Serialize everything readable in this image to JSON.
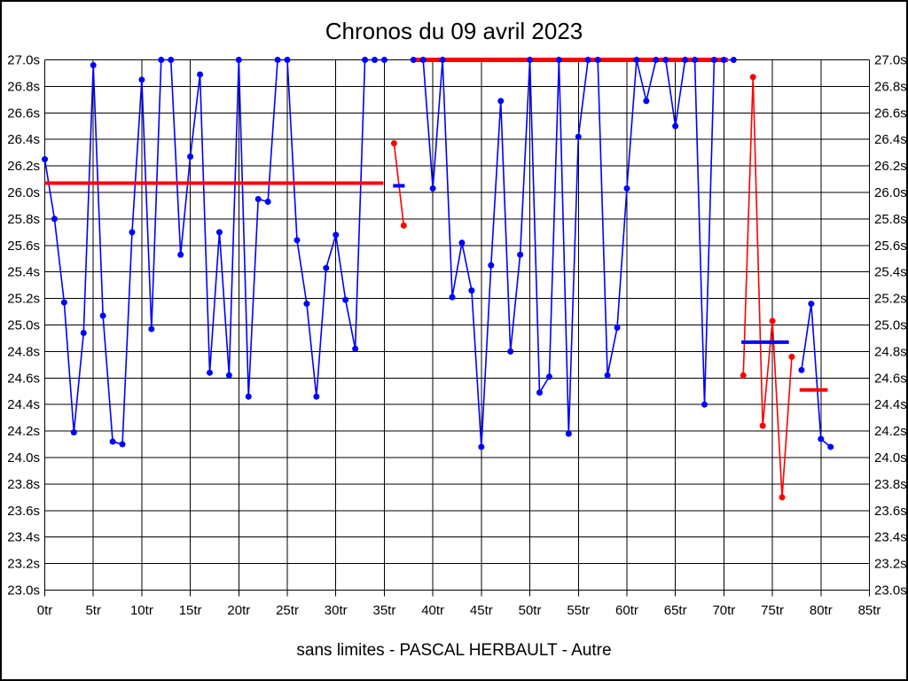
{
  "page": {
    "title": "Chronos du 09 avril 2023",
    "footer": "sans limites - PASCAL HERBAULT - Autre"
  },
  "chart_data": {
    "type": "line",
    "title": "Chronos du 09 avril 2023",
    "subtitle": "sans limites - PASCAL HERBAULT - Autre",
    "grid": true,
    "legend": "none",
    "x_axis": {
      "unit": "tr",
      "min": 0,
      "max": 85,
      "tick_step": 5,
      "tick_labels": [
        "0tr",
        "5tr",
        "10tr",
        "15tr",
        "20tr",
        "25tr",
        "30tr",
        "35tr",
        "40tr",
        "45tr",
        "50tr",
        "55tr",
        "60tr",
        "65tr",
        "70tr",
        "75tr",
        "80tr",
        "85tr"
      ]
    },
    "y_axis": {
      "unit": "s",
      "min": 23.0,
      "max": 27.0,
      "tick_step": 0.2,
      "labels_both_sides": true,
      "tick_labels_top_to_bottom": [
        "27.0s",
        "26.8s",
        "26.6s",
        "26.4s",
        "26.2s",
        "26.0s",
        "25.8s",
        "25.6s",
        "25.4s",
        "25.2s",
        "25.0s",
        "24.8s",
        "24.6s",
        "24.4s",
        "24.2s",
        "24.0s",
        "23.8s",
        "23.6s",
        "23.4s",
        "23.2s",
        "23.0s"
      ]
    },
    "colors": {
      "blue_series": "#0000ff",
      "red_series": "#ff0000",
      "grid": "#000000"
    },
    "series": [
      {
        "name": "chronos-bleu",
        "color": "#0000ff",
        "marker": "dot",
        "segments": [
          [
            [
              0,
              26.25
            ],
            [
              1,
              25.8
            ],
            [
              2,
              25.17
            ],
            [
              3,
              24.19
            ],
            [
              4,
              24.94
            ],
            [
              5,
              26.96
            ],
            [
              6,
              25.07
            ],
            [
              7,
              24.12
            ],
            [
              8,
              24.1
            ],
            [
              9,
              25.7
            ],
            [
              10,
              26.85
            ],
            [
              11,
              24.97
            ],
            [
              12,
              27.0
            ],
            [
              13,
              27.0
            ],
            [
              14,
              25.53
            ],
            [
              15,
              26.27
            ],
            [
              16,
              26.89
            ],
            [
              17,
              24.64
            ],
            [
              18,
              25.7
            ],
            [
              19,
              24.62
            ],
            [
              20,
              27.0
            ],
            [
              21,
              24.46
            ],
            [
              22,
              25.95
            ],
            [
              23,
              25.93
            ],
            [
              24,
              27.0
            ],
            [
              25,
              27.0
            ],
            [
              26,
              25.64
            ],
            [
              27,
              25.16
            ],
            [
              28,
              24.46
            ],
            [
              29,
              25.43
            ],
            [
              30,
              25.68
            ],
            [
              31,
              25.19
            ],
            [
              32,
              24.82
            ],
            [
              33,
              27.0
            ],
            [
              34,
              27.0
            ],
            [
              35,
              27.0
            ]
          ],
          [
            [
              38,
              27.0
            ],
            [
              39,
              27.0
            ],
            [
              40,
              26.03
            ],
            [
              41,
              27.0
            ],
            [
              42,
              25.21
            ],
            [
              43,
              25.62
            ],
            [
              44,
              25.26
            ],
            [
              45,
              24.08
            ],
            [
              46,
              25.45
            ],
            [
              47,
              26.69
            ],
            [
              48,
              24.8
            ],
            [
              49,
              25.53
            ],
            [
              50,
              27.0
            ],
            [
              51,
              24.49
            ],
            [
              52,
              24.61
            ],
            [
              53,
              27.0
            ],
            [
              54,
              24.18
            ],
            [
              55,
              26.42
            ],
            [
              56,
              27.0
            ],
            [
              57,
              27.0
            ],
            [
              58,
              24.62
            ],
            [
              59,
              24.98
            ],
            [
              60,
              26.03
            ],
            [
              61,
              27.0
            ],
            [
              62,
              26.69
            ],
            [
              63,
              27.0
            ],
            [
              64,
              27.0
            ],
            [
              65,
              26.5
            ],
            [
              66,
              27.0
            ],
            [
              67,
              27.0
            ],
            [
              68,
              24.4
            ],
            [
              69,
              27.0
            ],
            [
              70,
              27.0
            ],
            [
              71,
              27.0
            ]
          ],
          [
            [
              78,
              24.66
            ],
            [
              79,
              25.16
            ],
            [
              80,
              24.14
            ],
            [
              81,
              24.08
            ]
          ]
        ]
      },
      {
        "name": "chronos-rouge",
        "color": "#ff0000",
        "marker": "dot",
        "segments": [
          [
            [
              36,
              26.37
            ],
            [
              37,
              25.75
            ]
          ],
          [
            [
              72,
              24.62
            ],
            [
              73,
              26.87
            ],
            [
              74,
              24.24
            ],
            [
              75,
              25.03
            ],
            [
              76,
              23.7
            ],
            [
              77,
              24.76
            ]
          ]
        ]
      }
    ],
    "average_lines": [
      {
        "color": "#ff0000",
        "from_tr": 0.0,
        "to_tr": 34.9,
        "value": 26.07,
        "width": 4
      },
      {
        "color": "#0000ff",
        "from_tr": 35.9,
        "to_tr": 37.1,
        "value": 26.05,
        "width": 4
      },
      {
        "color": "#ff0000",
        "from_tr": 37.8,
        "to_tr": 70.4,
        "value": 27.0,
        "width": 5
      },
      {
        "color": "#0000ff",
        "from_tr": 71.8,
        "to_tr": 76.7,
        "value": 24.87,
        "width": 4
      },
      {
        "color": "#ff0000",
        "from_tr": 77.8,
        "to_tr": 80.7,
        "value": 24.51,
        "width": 4
      }
    ]
  }
}
